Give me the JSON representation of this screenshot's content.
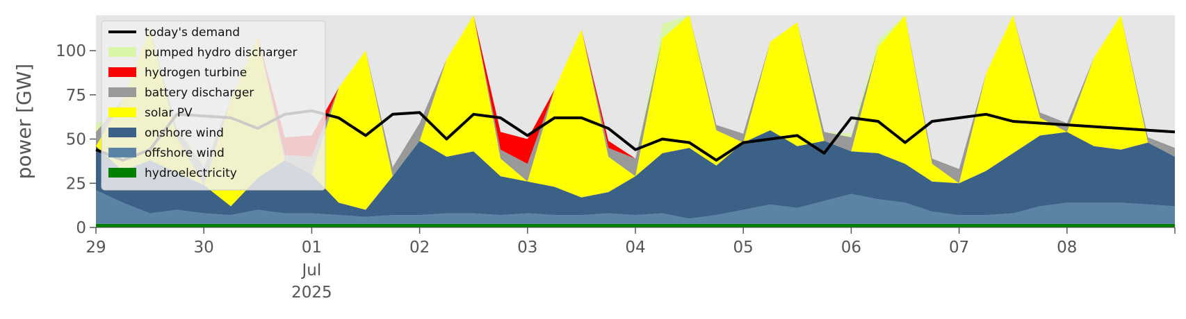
{
  "chart_data": {
    "type": "area",
    "ylabel": "power [GW]",
    "ylim": [
      0,
      120
    ],
    "yticks": [
      0,
      25,
      50,
      75,
      100
    ],
    "x_range": [
      "2025-06-29T00:00",
      "2025-07-09T00:00"
    ],
    "xticks": [
      {
        "date": "2025-06-29",
        "label": "29"
      },
      {
        "date": "2025-06-30",
        "label": "30"
      },
      {
        "date": "2025-07-01",
        "label": "01",
        "sub": [
          "Jul",
          "2025"
        ]
      },
      {
        "date": "2025-07-02",
        "label": "02"
      },
      {
        "date": "2025-07-03",
        "label": "03"
      },
      {
        "date": "2025-07-04",
        "label": "04"
      },
      {
        "date": "2025-07-05",
        "label": "05"
      },
      {
        "date": "2025-07-06",
        "label": "06"
      },
      {
        "date": "2025-07-07",
        "label": "07"
      },
      {
        "date": "2025-07-08",
        "label": "08"
      }
    ],
    "background": "#e6e6e6",
    "grid": false,
    "legend": {
      "position": "upper-left"
    },
    "x_hours": [
      0,
      6,
      12,
      18,
      24,
      30,
      36,
      42,
      48,
      54,
      60,
      66,
      72,
      78,
      84,
      90,
      96,
      102,
      108,
      114,
      120,
      126,
      132,
      138,
      144,
      150,
      156,
      162,
      168,
      174,
      180,
      186,
      192,
      198,
      204,
      210,
      216,
      222,
      228,
      234,
      240
    ],
    "series": [
      {
        "name": "hydroelectricity",
        "color": "#008000",
        "values": [
          2,
          2,
          2,
          2,
          2,
          2,
          2,
          2,
          2,
          2,
          2,
          2,
          2,
          2,
          2,
          2,
          2,
          2,
          2,
          2,
          2,
          2,
          2,
          2,
          2,
          2,
          2,
          2,
          2,
          2,
          2,
          2,
          2,
          2,
          2,
          2,
          2,
          2,
          2,
          2,
          2
        ]
      },
      {
        "name": "offshore wind",
        "color": "#5b83a6",
        "values": [
          19,
          12,
          6,
          8,
          6,
          5,
          8,
          6,
          6,
          5,
          4,
          5,
          5,
          6,
          6,
          5,
          6,
          5,
          5,
          6,
          5,
          6,
          3,
          5,
          8,
          11,
          9,
          13,
          17,
          14,
          12,
          7,
          5,
          5,
          6,
          10,
          12,
          12,
          12,
          11,
          10
        ]
      },
      {
        "name": "onshore wind",
        "color": "#3b6186",
        "values": [
          25,
          18,
          30,
          21,
          16,
          5,
          18,
          30,
          22,
          7,
          4,
          22,
          42,
          32,
          35,
          22,
          18,
          16,
          10,
          12,
          22,
          34,
          40,
          28,
          38,
          42,
          35,
          34,
          24,
          26,
          22,
          17,
          18,
          25,
          34,
          40,
          40,
          32,
          30,
          35,
          28
        ]
      },
      {
        "name": "solar PV",
        "color": "#ffff00",
        "values": [
          0,
          40,
          75,
          20,
          0,
          60,
          80,
          0,
          0,
          65,
          90,
          0,
          0,
          55,
          90,
          10,
          0,
          55,
          95,
          20,
          0,
          65,
          90,
          20,
          0,
          50,
          70,
          0,
          0,
          60,
          85,
          10,
          0,
          55,
          85,
          10,
          0,
          50,
          80,
          0,
          0
        ]
      },
      {
        "name": "battery discharger",
        "color": "#999999",
        "values": [
          8,
          0,
          0,
          5,
          10,
          0,
          0,
          3,
          10,
          0,
          0,
          5,
          10,
          0,
          0,
          5,
          10,
          0,
          0,
          5,
          10,
          0,
          0,
          3,
          5,
          0,
          0,
          5,
          8,
          0,
          0,
          3,
          8,
          0,
          0,
          3,
          5,
          0,
          0,
          3,
          5
        ]
      },
      {
        "name": "hydrogen turbine",
        "color": "#ff0000",
        "values": [
          0,
          0,
          0,
          0,
          0,
          0,
          0,
          10,
          12,
          0,
          0,
          0,
          0,
          0,
          0,
          10,
          14,
          0,
          0,
          4,
          0,
          0,
          0,
          0,
          0,
          0,
          0,
          0,
          0,
          0,
          0,
          0,
          0,
          0,
          0,
          0,
          0,
          0,
          0,
          0,
          0
        ]
      },
      {
        "name": "pumped hydro discharger",
        "color": "#d9f5a8",
        "values": [
          4,
          0,
          0,
          2,
          3,
          0,
          0,
          0,
          0,
          0,
          0,
          0,
          0,
          0,
          0,
          0,
          0,
          0,
          0,
          0,
          0,
          8,
          0,
          0,
          0,
          0,
          0,
          0,
          2,
          4,
          0,
          0,
          0,
          0,
          0,
          0,
          0,
          0,
          0,
          0,
          0
        ]
      },
      {
        "name": "today's demand",
        "color": "#000000",
        "line": true,
        "values": [
          44,
          38,
          44,
          64,
          63,
          62,
          56,
          64,
          66,
          62,
          52,
          64,
          65,
          50,
          64,
          62,
          52,
          62,
          62,
          56,
          44,
          50,
          48,
          38,
          48,
          50,
          52,
          42,
          62,
          60,
          48,
          60,
          64,
          60,
          54
        ]
      }
    ],
    "demand_hours": [
      0,
      6,
      12,
      18,
      24,
      30,
      36,
      42,
      48,
      54,
      60,
      66,
      72,
      78,
      84,
      90,
      96,
      102,
      108,
      114,
      120,
      126,
      132,
      138,
      144,
      150,
      156,
      162,
      168,
      174,
      180,
      186,
      198,
      204,
      240
    ]
  }
}
